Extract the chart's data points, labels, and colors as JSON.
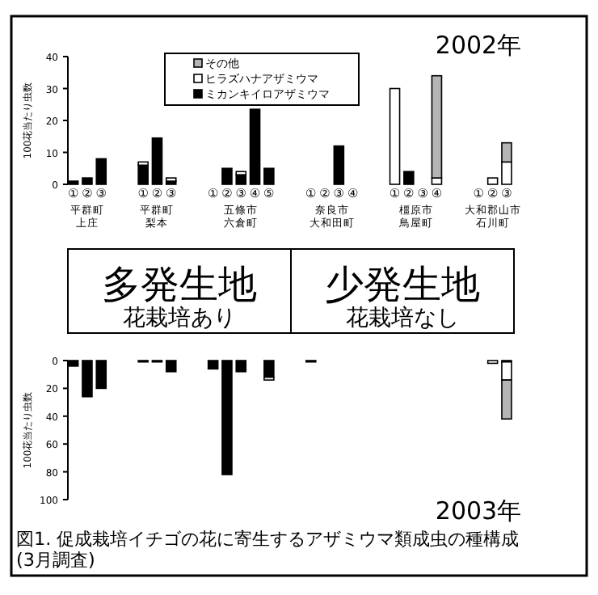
{
  "chart_data": [
    {
      "type": "bar",
      "stacked": true,
      "title": "2002年",
      "ylabel": "100花当たり虫数",
      "ylim": [
        0,
        40
      ],
      "yticks": [
        0,
        10,
        20,
        30,
        40
      ],
      "legend": "top",
      "categories": [
        "①",
        "②",
        "③",
        null,
        null,
        "①",
        "②",
        "③",
        null,
        null,
        "①",
        "②",
        "③",
        "④",
        "⑤",
        null,
        null,
        "①",
        "②",
        "③",
        "④",
        null,
        null,
        "①",
        "②",
        "③",
        "④",
        null,
        null,
        "①",
        "②",
        "③"
      ],
      "series": [
        {
          "name": "ミカンキイロアザミウマ",
          "color": "#000000",
          "values": [
            1,
            2,
            8,
            null,
            null,
            6,
            14.5,
            1,
            null,
            null,
            0,
            5,
            3,
            23.5,
            5,
            null,
            null,
            0,
            0,
            12,
            0,
            null,
            null,
            0,
            4,
            0,
            0,
            null,
            null,
            0,
            0,
            0
          ]
        },
        {
          "name": "ヒラズハナアザミウマ",
          "color": "#ffffff",
          "values": [
            0,
            0,
            0,
            null,
            null,
            1,
            0,
            1,
            null,
            null,
            0,
            0,
            1,
            0,
            0,
            null,
            null,
            0,
            0,
            0,
            0,
            null,
            null,
            30,
            0,
            0,
            2,
            null,
            null,
            0,
            2,
            7
          ]
        },
        {
          "name": "その他",
          "color": "#b4b4b4",
          "values": [
            0,
            0,
            0,
            null,
            null,
            0,
            0,
            0,
            null,
            null,
            0,
            0,
            0,
            0,
            0,
            null,
            null,
            0,
            0,
            0,
            0,
            null,
            null,
            0,
            0,
            0,
            32,
            null,
            null,
            0,
            0,
            6
          ]
        }
      ],
      "annotations": [
        "平群町",
        "上庄",
        "平群町",
        "梨本",
        "五條市",
        "六倉町",
        "奈良市",
        "大和田町",
        "橿原市",
        "鳥屋町",
        "大和郡山市",
        "石川町",
        "多発生地",
        "花栽培あり",
        "少発生地",
        "花栽培なし"
      ]
    },
    {
      "type": "bar",
      "stacked": true,
      "title": "2003年",
      "ylabel": "100花当たり虫数",
      "ylim": [
        100,
        0
      ],
      "yticks": [
        0,
        20,
        40,
        60,
        80,
        100
      ],
      "tick_labels": "y",
      "categories": [
        null,
        null,
        null,
        null,
        null,
        null,
        null,
        null,
        null,
        null,
        null,
        null,
        null,
        null,
        null,
        null,
        null,
        null,
        null,
        null,
        null,
        null,
        null,
        null,
        null,
        null,
        null,
        null,
        null,
        null,
        null,
        null
      ],
      "series": [
        {
          "color": "#000000",
          "values": [
            4,
            26,
            20,
            null,
            null,
            1,
            1,
            8,
            null,
            null,
            6,
            82,
            8,
            0,
            12,
            null,
            null,
            1,
            0,
            0,
            0,
            null,
            null,
            0,
            0,
            0,
            0,
            null,
            null,
            0,
            0,
            1
          ]
        },
        {
          "color": "#ffffff",
          "values": [
            0,
            0,
            0,
            null,
            null,
            0,
            0,
            0,
            null,
            null,
            0,
            0,
            0,
            0,
            2,
            null,
            null,
            0,
            0,
            0,
            0,
            null,
            null,
            0,
            0,
            0,
            0,
            null,
            null,
            0,
            2,
            13
          ]
        },
        {
          "color": "#b4b4b4",
          "values": [
            0,
            0,
            0,
            null,
            null,
            0,
            0,
            0,
            null,
            null,
            0,
            0,
            0,
            0,
            0,
            null,
            null,
            0,
            0,
            0,
            0,
            null,
            null,
            0,
            0,
            0,
            0,
            null,
            null,
            0,
            0,
            28
          ]
        }
      ],
      "annotations": [
        "図1. 促成栽培イチゴの花に寄生するアザミウマ類成虫の種構成\n(3月調査)"
      ]
    }
  ]
}
